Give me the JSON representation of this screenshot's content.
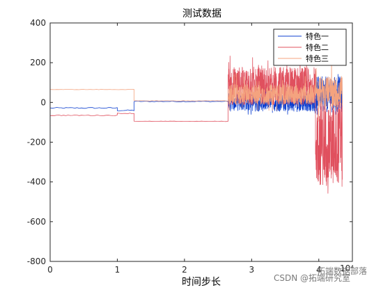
{
  "chart_data": {
    "type": "line",
    "title": "测试数据",
    "xlabel": "时间步长",
    "ylabel": "",
    "x_multiplier_label": "10⁴",
    "xlim": [
      0,
      4.5
    ],
    "ylim": [
      -800,
      400
    ],
    "xticks": [
      0,
      1,
      2,
      3,
      4
    ],
    "yticks": [
      -800,
      -600,
      -400,
      -200,
      0,
      200,
      400
    ],
    "grid": false,
    "legend_position": "top-right",
    "series": [
      {
        "name": "特色一",
        "color": "#0c3fd0",
        "segments": [
          {
            "x": [
              0,
              1.0
            ],
            "mean": -28,
            "jitter": 3
          },
          {
            "x": [
              1.0,
              1.25
            ],
            "mean": -40,
            "jitter": 3
          },
          {
            "x": [
              1.25,
              2.65
            ],
            "mean": 5,
            "jitter": 2
          },
          {
            "x": [
              2.65,
              3.95
            ],
            "mean": 0,
            "jitter": 45,
            "min": -60,
            "max": 120
          },
          {
            "x": [
              3.95,
              4.35
            ],
            "mean": 40,
            "jitter": 90,
            "min": -60,
            "max": 230
          }
        ]
      },
      {
        "name": "特色二",
        "color": "#e0505e",
        "segments": [
          {
            "x": [
              0,
              1.0
            ],
            "mean": -65,
            "jitter": 2
          },
          {
            "x": [
              1.0,
              1.25
            ],
            "mean": -55,
            "jitter": 2
          },
          {
            "x": [
              1.25,
              2.65
            ],
            "mean": -95,
            "jitter": 1
          },
          {
            "x": [
              2.65,
              3.95
            ],
            "mean": 80,
            "jitter": 100,
            "min": -10,
            "max": 270
          },
          {
            "x": [
              3.95,
              4.35
            ],
            "mean": -200,
            "jitter": 220,
            "min": -640,
            "max": 200
          }
        ]
      },
      {
        "name": "特色三",
        "color": "#f4a37f",
        "segments": [
          {
            "x": [
              0,
              1.25
            ],
            "mean": 65,
            "jitter": 1
          },
          {
            "x": [
              1.25,
              2.65
            ],
            "mean": 8,
            "jitter": 1
          },
          {
            "x": [
              2.65,
              3.95
            ],
            "mean": 40,
            "jitter": 50,
            "min": -40,
            "max": 180
          },
          {
            "x": [
              3.95,
              4.35
            ],
            "mean": 50,
            "jitter": 80,
            "min": -200,
            "max": 240
          }
        ]
      }
    ]
  },
  "watermark": {
    "text_1": "CSDN @拓端研究室",
    "text_2": "拓端数据部落"
  }
}
